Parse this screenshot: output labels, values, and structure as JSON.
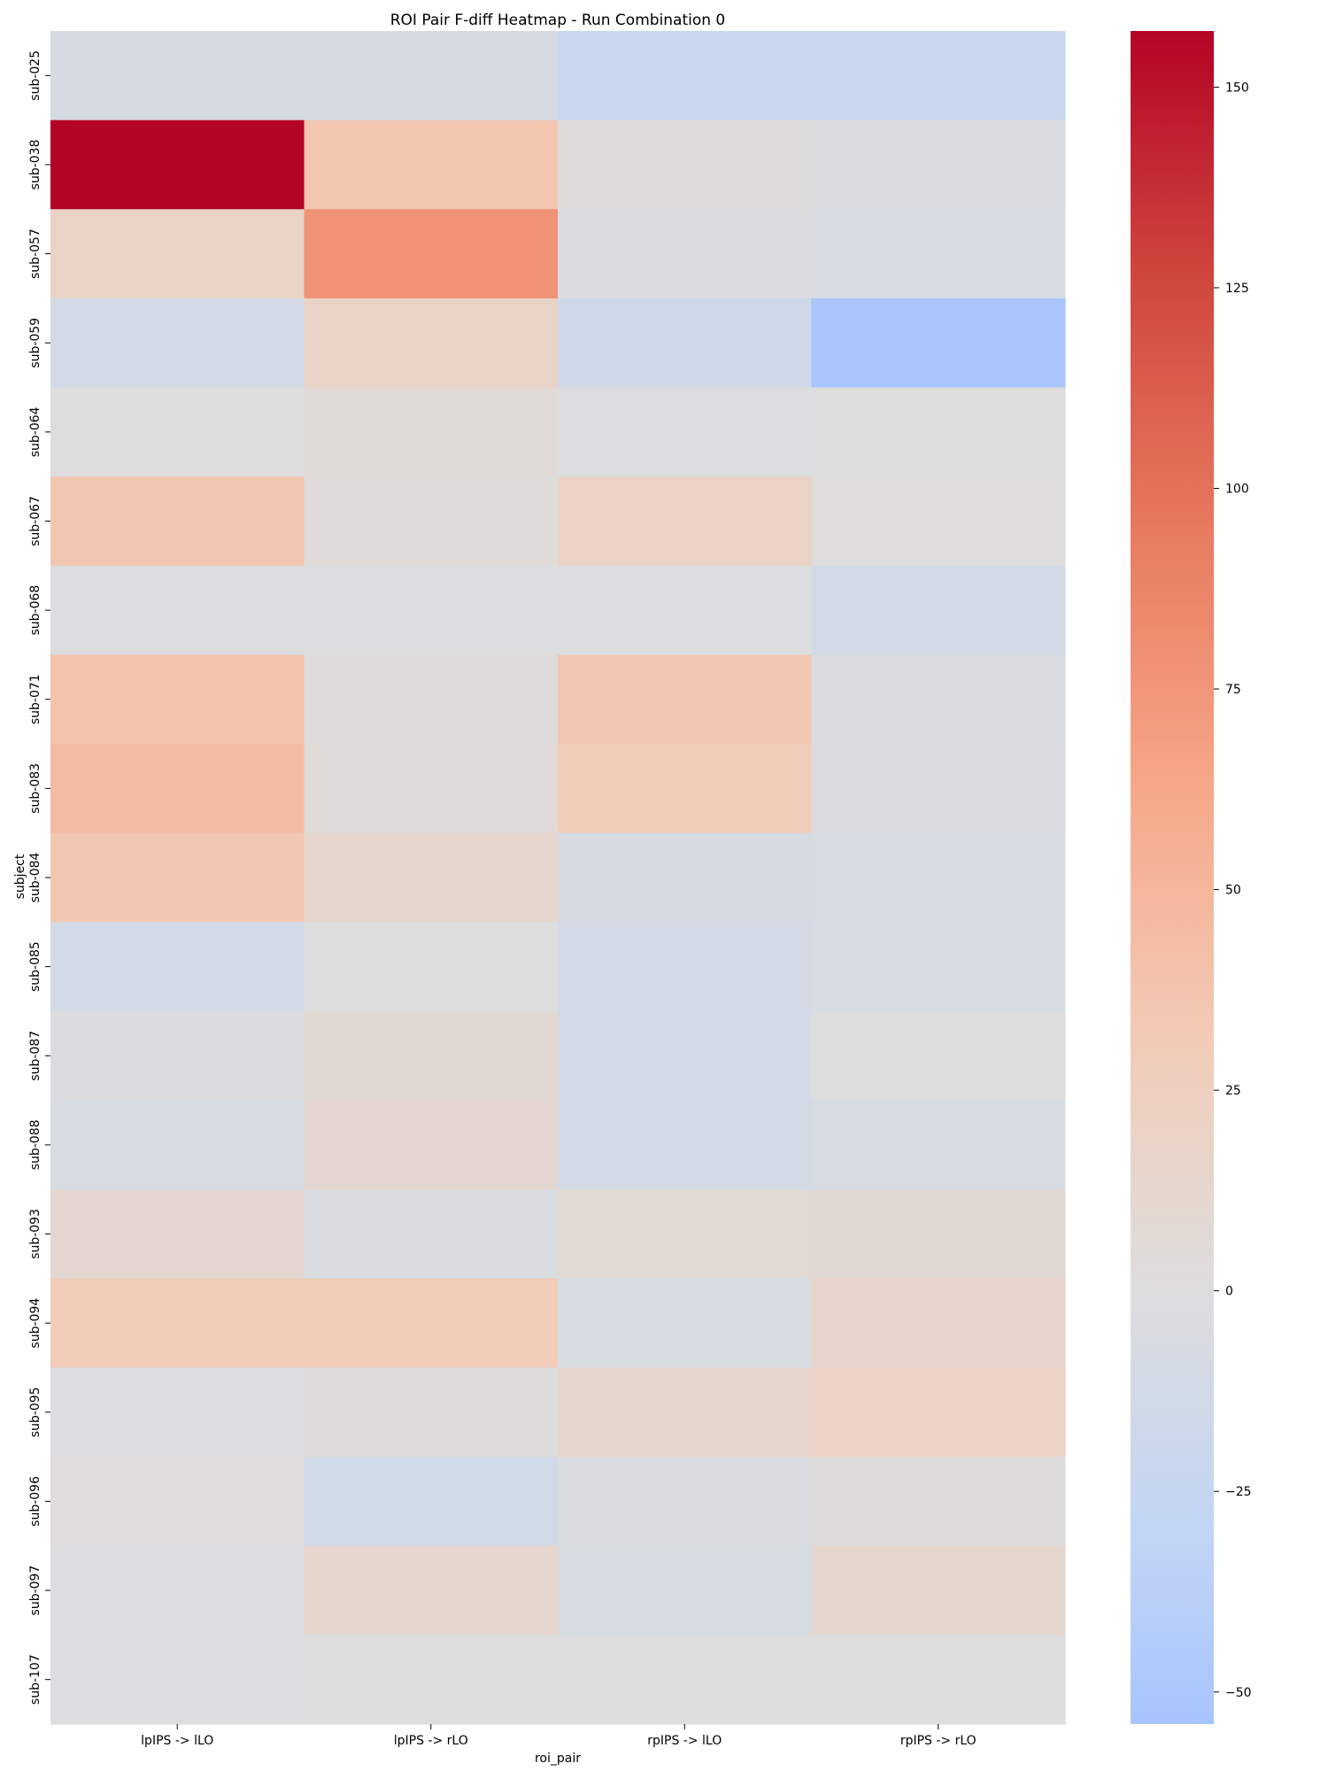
{
  "chart_data": {
    "type": "heatmap",
    "title": "ROI Pair F-diff Heatmap - Run Combination 0",
    "xlabel": "roi_pair",
    "ylabel": "subject",
    "columns": [
      "lpIPS -> lLO",
      "lpIPS -> rLO",
      "rpIPS -> lLO",
      "rpIPS -> rLO"
    ],
    "rows": [
      "sub-025",
      "sub-038",
      "sub-057",
      "sub-059",
      "sub-064",
      "sub-067",
      "sub-068",
      "sub-071",
      "sub-083",
      "sub-084",
      "sub-085",
      "sub-087",
      "sub-088",
      "sub-093",
      "sub-094",
      "sub-095",
      "sub-096",
      "sub-097",
      "sub-107"
    ],
    "values": [
      [
        -8,
        -8,
        -22,
        -22
      ],
      [
        157,
        36,
        2,
        -4
      ],
      [
        18,
        78,
        -2,
        -6
      ],
      [
        -10,
        18,
        -16,
        -52
      ],
      [
        0,
        5,
        -1,
        0
      ],
      [
        35,
        3,
        20,
        1
      ],
      [
        -1,
        -1,
        -1,
        -12
      ],
      [
        38,
        2,
        35,
        -5
      ],
      [
        45,
        4,
        30,
        -3
      ],
      [
        35,
        12,
        -8,
        -7
      ],
      [
        -12,
        0,
        -10,
        -6
      ],
      [
        -2,
        8,
        -10,
        0
      ],
      [
        -6,
        10,
        -12,
        -7
      ],
      [
        10,
        -4,
        7,
        8
      ],
      [
        30,
        30,
        -6,
        16
      ],
      [
        -1,
        2,
        14,
        20
      ],
      [
        1,
        -14,
        -2,
        2
      ],
      [
        -1,
        13,
        -6,
        12
      ],
      [
        -1,
        0,
        0,
        0
      ]
    ],
    "colormap": "coolwarm",
    "center": 0,
    "vmin": -54,
    "vmax": 157,
    "colorbar_ticks": [
      150,
      125,
      100,
      75,
      50,
      25,
      0,
      -25,
      -50
    ]
  }
}
